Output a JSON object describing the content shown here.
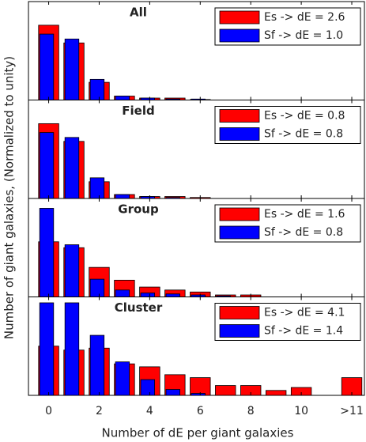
{
  "axes": {
    "xlabel": "Number of dE per giant galaxies",
    "ylabel": "Number of giant galaxies, (Normalized to unity)",
    "xlim": [
      -0.8,
      12.5
    ],
    "xticks": [
      0,
      2,
      4,
      6,
      8,
      10,
      {
        "value": 12,
        "label": ">11"
      }
    ]
  },
  "chart_data": [
    {
      "type": "bar",
      "title": "All",
      "x": [
        0,
        1,
        2,
        3,
        4,
        5,
        6,
        7,
        8,
        9,
        10,
        12
      ],
      "ylim": [
        0,
        1
      ],
      "series": [
        {
          "name": "Es -> dE = 2.6",
          "color": "#ff0000",
          "values": [
            0.76,
            0.58,
            0.18,
            0.04,
            0.02,
            0.02,
            0.005,
            0,
            0,
            0,
            0,
            0
          ]
        },
        {
          "name": "Sf -> dE = 1.0",
          "color": "#0000ff",
          "values": [
            0.67,
            0.62,
            0.21,
            0.04,
            0.02,
            0.01,
            0.01,
            0,
            0,
            0,
            0,
            0
          ]
        }
      ]
    },
    {
      "type": "bar",
      "title": "Field",
      "x": [
        0,
        1,
        2,
        3,
        4,
        5,
        6,
        7,
        8,
        9,
        10,
        12
      ],
      "ylim": [
        0,
        1
      ],
      "series": [
        {
          "name": "Es -> dE = 0.8",
          "color": "#ff0000",
          "values": [
            0.76,
            0.58,
            0.17,
            0.04,
            0.02,
            0.02,
            0.01,
            0,
            0,
            0,
            0,
            0
          ]
        },
        {
          "name": "Sf -> dE = 0.8",
          "color": "#0000ff",
          "values": [
            0.67,
            0.62,
            0.21,
            0.04,
            0.02,
            0.01,
            0,
            0,
            0,
            0,
            0,
            0
          ]
        }
      ]
    },
    {
      "type": "bar",
      "title": "Group",
      "x": [
        0,
        1,
        2,
        3,
        4,
        5,
        6,
        7,
        8,
        9,
        10,
        12
      ],
      "ylim": [
        0,
        1
      ],
      "series": [
        {
          "name": "Es -> dE = 1.6",
          "color": "#ff0000",
          "values": [
            0.56,
            0.5,
            0.3,
            0.17,
            0.1,
            0.07,
            0.05,
            0.02,
            0.02,
            0,
            0,
            0
          ]
        },
        {
          "name": "Sf -> dE = 0.8",
          "color": "#0000ff",
          "values": [
            0.9,
            0.53,
            0.18,
            0.07,
            0.04,
            0.03,
            0.02,
            0.01,
            0,
            0,
            0,
            0
          ]
        }
      ]
    },
    {
      "type": "bar",
      "title": "Cluster",
      "x": [
        0,
        1,
        2,
        3,
        4,
        5,
        6,
        7,
        8,
        9,
        10,
        12
      ],
      "ylim": [
        0,
        1
      ],
      "series": [
        {
          "name": "Es -> dE = 4.1",
          "color": "#ff0000",
          "values": [
            0.5,
            0.46,
            0.48,
            0.32,
            0.29,
            0.21,
            0.18,
            0.1,
            0.1,
            0.05,
            0.08,
            0.18
          ]
        },
        {
          "name": "Sf -> dE = 1.4",
          "color": "#0000ff",
          "values": [
            0.94,
            0.94,
            0.61,
            0.34,
            0.16,
            0.06,
            0.02,
            0,
            0,
            0,
            0,
            0
          ]
        }
      ]
    }
  ]
}
